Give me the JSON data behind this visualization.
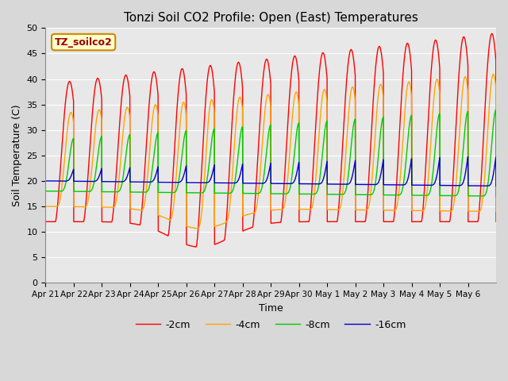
{
  "title": "Tonzi Soil CO2 Profile: Open (East) Temperatures",
  "ylabel": "Soil Temperature (C)",
  "xlabel": "Time",
  "ylim": [
    0,
    50
  ],
  "yticks": [
    0,
    5,
    10,
    15,
    20,
    25,
    30,
    35,
    40,
    45,
    50
  ],
  "annotation_label": "TZ_soilco2",
  "legend_labels": [
    "-2cm",
    "-4cm",
    "-8cm",
    "-16cm"
  ],
  "legend_colors": [
    "#ff0000",
    "#ffa500",
    "#00cc00",
    "#0000cc"
  ],
  "fig_bg_color": "#d8d8d8",
  "plot_bg_color": "#e8e8e8",
  "x_tick_labels": [
    "Apr 21",
    "Apr 22",
    "Apr 23",
    "Apr 24",
    "Apr 25",
    "Apr 26",
    "Apr 27",
    "Apr 28",
    "Apr 29",
    "Apr 30",
    "May 1",
    "May 2",
    "May 3",
    "May 4",
    "May 5",
    "May 6"
  ],
  "num_days": 16,
  "pts_per_day": 144
}
